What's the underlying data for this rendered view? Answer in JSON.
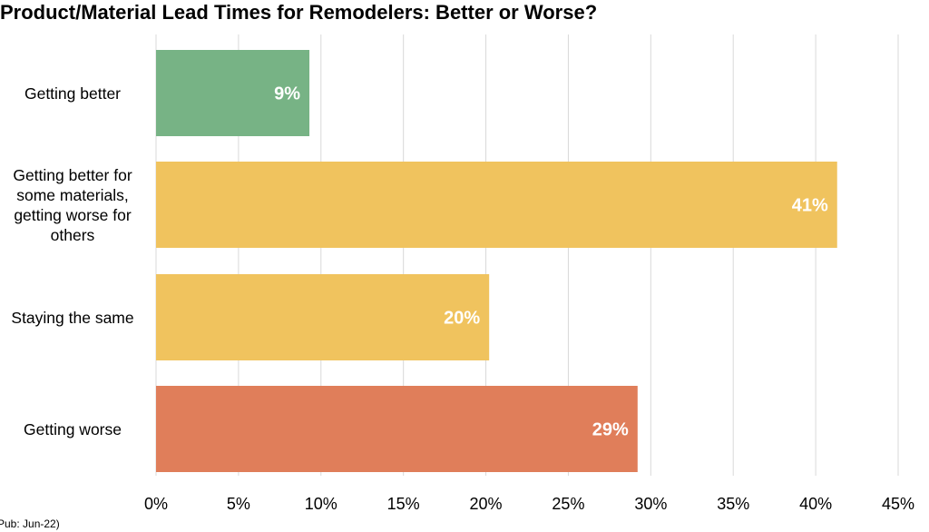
{
  "chart_data": {
    "type": "bar",
    "orientation": "horizontal",
    "title": "Product/Material Lead Times for Remodelers: Better or Worse?",
    "categories": [
      "Getting better",
      "Getting better for some materials, getting worse for others",
      "Staying the same",
      "Getting worse"
    ],
    "values": [
      9.3,
      41.3,
      20.2,
      29.2
    ],
    "data_labels": [
      "9%",
      "41%",
      "20%",
      "29%"
    ],
    "bar_colors": [
      "#77b385",
      "#f0c35e",
      "#f0c35e",
      "#e07e5a"
    ],
    "xlim": [
      0,
      45
    ],
    "xticks": [
      0,
      5,
      10,
      15,
      20,
      25,
      30,
      35,
      40,
      45
    ],
    "tick_labels": [
      "0%",
      "5%",
      "10%",
      "15%",
      "20%",
      "25%",
      "30%",
      "35%",
      "40%",
      "45%"
    ],
    "xlabel": "",
    "ylabel": "",
    "grid": true,
    "gridline_color": "#d9d9d9",
    "data_label_color": "#ffffff",
    "legend": "none"
  },
  "footnote": "Pub: Jun-22)"
}
